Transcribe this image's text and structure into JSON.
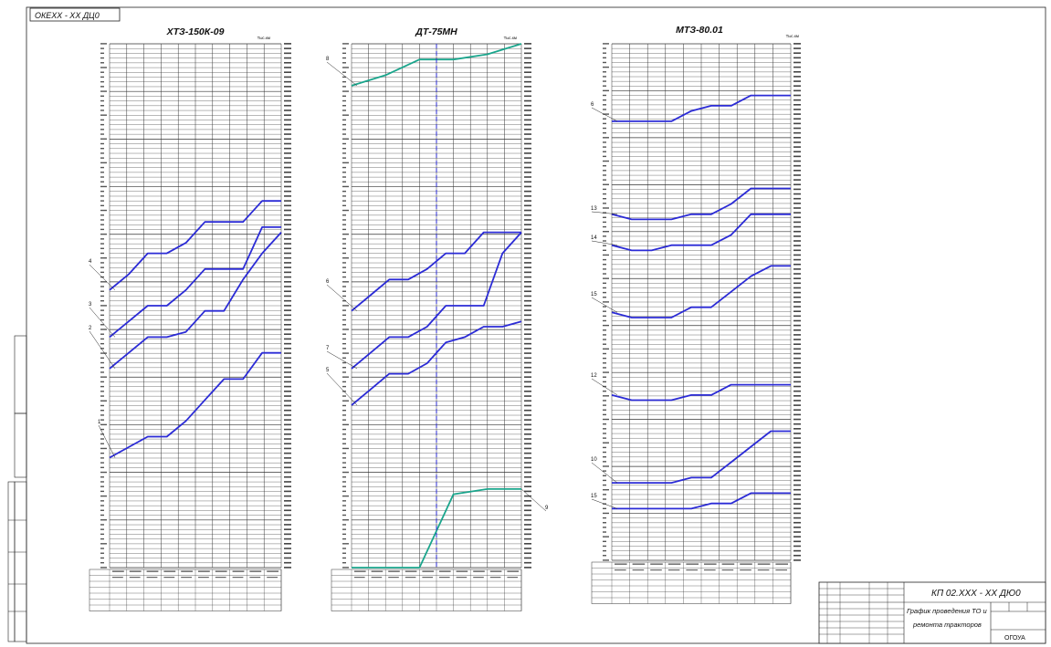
{
  "stamp_top": "ОКЕХХ - ХХ ДЦ0",
  "panels": [
    {
      "title": "ХТЗ-150К-09",
      "unit_label": "Тыс.км"
    },
    {
      "title": "ДТ-75МН",
      "unit_label": "Тыс.км"
    },
    {
      "title": "МТЗ-80.01",
      "unit_label": "Тыс.км"
    }
  ],
  "chart_data": [
    {
      "type": "line",
      "title": "ХТЗ-150К-09",
      "series": [
        {
          "name": "4",
          "color": "#2b2bd6",
          "y": [
            0.53,
            0.56,
            0.6,
            0.6,
            0.62,
            0.66,
            0.66,
            0.66,
            0.7,
            0.7
          ]
        },
        {
          "name": "3",
          "color": "#2b2bd6",
          "y": [
            0.44,
            0.47,
            0.5,
            0.5,
            0.53,
            0.57,
            0.57,
            0.57,
            0.65,
            0.65
          ]
        },
        {
          "name": "2",
          "color": "#2b2bd6",
          "y": [
            0.38,
            0.41,
            0.44,
            0.44,
            0.45,
            0.49,
            0.49,
            0.55,
            0.6,
            0.64
          ]
        },
        {
          "name": "1",
          "color": "#2b2bd6",
          "y": [
            0.21,
            0.23,
            0.25,
            0.25,
            0.28,
            0.32,
            0.36,
            0.36,
            0.41,
            0.41
          ]
        }
      ]
    },
    {
      "type": "line",
      "title": "ДТ-75МН",
      "series": [
        {
          "name": "8",
          "color": "#1aa58c",
          "y": [
            0.92,
            0.94,
            0.97,
            0.97,
            0.98,
            1.0
          ]
        },
        {
          "name": "6",
          "color": "#2b2bd6",
          "y": [
            0.49,
            0.52,
            0.55,
            0.55,
            0.57,
            0.6,
            0.6,
            0.64,
            0.64,
            0.64
          ]
        },
        {
          "name": "7",
          "color": "#2b2bd6",
          "y": [
            0.38,
            0.41,
            0.44,
            0.44,
            0.46,
            0.5,
            0.5,
            0.5,
            0.6,
            0.64
          ]
        },
        {
          "name": "5",
          "color": "#2b2bd6",
          "y": [
            0.31,
            0.34,
            0.37,
            0.37,
            0.39,
            0.43,
            0.44,
            0.46,
            0.46,
            0.47
          ]
        },
        {
          "name": "9",
          "color": "#1aa58c",
          "y": [
            0.0,
            0.0,
            0.0,
            0.14,
            0.15,
            0.15
          ]
        }
      ]
    },
    {
      "type": "line",
      "title": "МТЗ-80.01",
      "series": [
        {
          "name": "6",
          "y": [
            0.85,
            0.85,
            0.85,
            0.85,
            0.87,
            0.88,
            0.88,
            0.9,
            0.9,
            0.9
          ]
        },
        {
          "name": "13",
          "y": [
            0.67,
            0.66,
            0.66,
            0.66,
            0.67,
            0.67,
            0.69,
            0.72,
            0.72,
            0.72
          ]
        },
        {
          "name": "14",
          "y": [
            0.61,
            0.6,
            0.6,
            0.61,
            0.61,
            0.61,
            0.63,
            0.67,
            0.67,
            0.67
          ]
        },
        {
          "name": "15",
          "y": [
            0.48,
            0.47,
            0.47,
            0.47,
            0.49,
            0.49,
            0.52,
            0.55,
            0.57,
            0.57
          ]
        },
        {
          "name": "12",
          "y": [
            0.32,
            0.31,
            0.31,
            0.31,
            0.32,
            0.32,
            0.34,
            0.34,
            0.34,
            0.34
          ]
        },
        {
          "name": "10",
          "y": [
            0.15,
            0.15,
            0.15,
            0.15,
            0.16,
            0.16,
            0.19,
            0.22,
            0.25,
            0.25
          ]
        },
        {
          "name": "15",
          "y": [
            0.1,
            0.1,
            0.1,
            0.1,
            0.1,
            0.11,
            0.11,
            0.13,
            0.13,
            0.13
          ]
        }
      ]
    }
  ],
  "title_block": {
    "code": "КП 02.ХХХ - ХХ ДЮ0",
    "title_line1": "График проведения ТО и",
    "title_line2": "ремонта тракторов",
    "org": "ОГОУА"
  }
}
